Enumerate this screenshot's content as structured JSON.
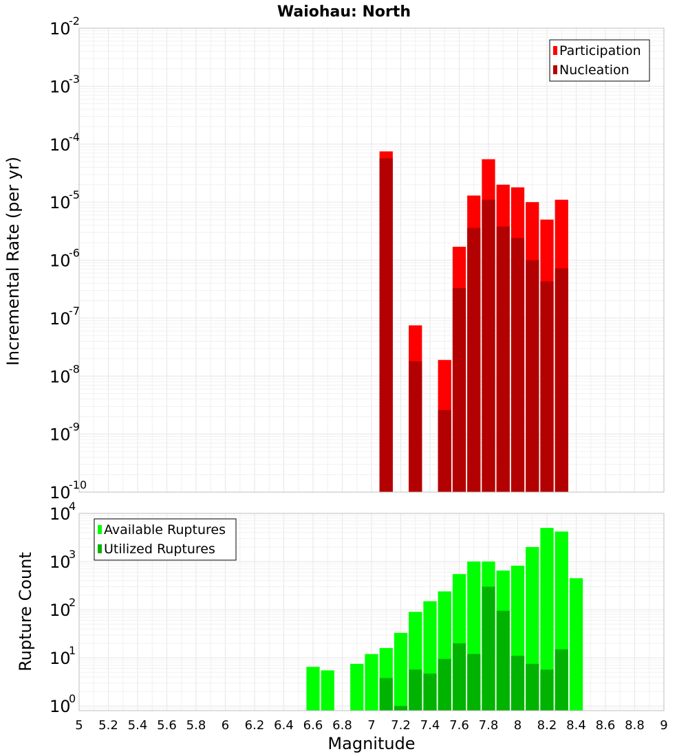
{
  "chart_data": [
    {
      "type": "bar",
      "title": "Waiohau: North",
      "ylabel": "Incremental Rate (per yr)",
      "xlabel": "",
      "yscale": "log",
      "ylim": [
        1e-10,
        0.01
      ],
      "xlim": [
        5,
        9
      ],
      "y_ticks": [
        {
          "base": "10",
          "exp": "-10",
          "value": 1e-10
        },
        {
          "base": "10",
          "exp": "-9",
          "value": 1e-09
        },
        {
          "base": "10",
          "exp": "-8",
          "value": 1e-08
        },
        {
          "base": "10",
          "exp": "-7",
          "value": 1e-07
        },
        {
          "base": "10",
          "exp": "-6",
          "value": 1e-06
        },
        {
          "base": "10",
          "exp": "-5",
          "value": 1e-05
        },
        {
          "base": "10",
          "exp": "-4",
          "value": 0.0001
        },
        {
          "base": "10",
          "exp": "-3",
          "value": 0.001
        },
        {
          "base": "10",
          "exp": "-2",
          "value": 0.01
        }
      ],
      "grid": true,
      "legend_position": "top-right",
      "series": [
        {
          "name": "Participation",
          "color": "#ff0000",
          "x": [
            7.1,
            7.3,
            7.5,
            7.6,
            7.7,
            7.8,
            7.9,
            8.0,
            8.1,
            8.2,
            8.3
          ],
          "values": [
            7.5e-05,
            7.5e-08,
            1.9e-08,
            1.7e-06,
            1.3e-05,
            5.5e-05,
            2e-05,
            1.8e-05,
            1e-05,
            5e-06,
            1.1e-05
          ]
        },
        {
          "name": "Nucleation",
          "color": "#b30000",
          "x": [
            7.1,
            7.3,
            7.5,
            7.6,
            7.7,
            7.8,
            7.9,
            8.0,
            8.1,
            8.2,
            8.3
          ],
          "values": [
            5.7e-05,
            1.8e-08,
            2.6e-09,
            3.3e-07,
            3.6e-06,
            1.1e-05,
            3.8e-06,
            2.4e-06,
            1e-06,
            4.3e-07,
            7.2e-07
          ]
        }
      ]
    },
    {
      "type": "bar",
      "title": "",
      "ylabel": "Rupture Count",
      "xlabel": "Magnitude",
      "yscale": "log",
      "ylim": [
        0.8,
        10000
      ],
      "xlim": [
        5,
        9
      ],
      "y_ticks": [
        {
          "base": "10",
          "exp": "0",
          "value": 1
        },
        {
          "base": "10",
          "exp": "1",
          "value": 10
        },
        {
          "base": "10",
          "exp": "2",
          "value": 100
        },
        {
          "base": "10",
          "exp": "3",
          "value": 1000
        },
        {
          "base": "10",
          "exp": "4",
          "value": 10000
        }
      ],
      "x_ticks": [
        "5",
        "5.2",
        "5.4",
        "5.6",
        "5.8",
        "6",
        "6.2",
        "6.4",
        "6.6",
        "6.8",
        "7",
        "7.2",
        "7.4",
        "7.6",
        "7.8",
        "8",
        "8.2",
        "8.4",
        "8.6",
        "8.8",
        "9"
      ],
      "grid": true,
      "legend_position": "top-left",
      "series": [
        {
          "name": "Available Ruptures",
          "color": "#00ff00",
          "x": [
            6.6,
            6.7,
            6.9,
            7.0,
            7.1,
            7.2,
            7.3,
            7.4,
            7.5,
            7.6,
            7.7,
            7.8,
            7.9,
            8.0,
            8.1,
            8.2,
            8.3,
            8.4
          ],
          "values": [
            6.5,
            5.5,
            7.5,
            12,
            16,
            33,
            90,
            150,
            240,
            550,
            1000,
            1000,
            650,
            820,
            2000,
            5000,
            4200,
            450
          ]
        },
        {
          "name": "Utilized Ruptures",
          "color": "#00b300",
          "x": [
            7.1,
            7.2,
            7.3,
            7.4,
            7.5,
            7.6,
            7.7,
            7.8,
            7.9,
            8.0,
            8.1,
            8.2,
            8.3
          ],
          "values": [
            3.8,
            1.0,
            5.7,
            4.7,
            9.5,
            20,
            12,
            300,
            95,
            11,
            7.5,
            5.7,
            15
          ]
        }
      ]
    }
  ]
}
